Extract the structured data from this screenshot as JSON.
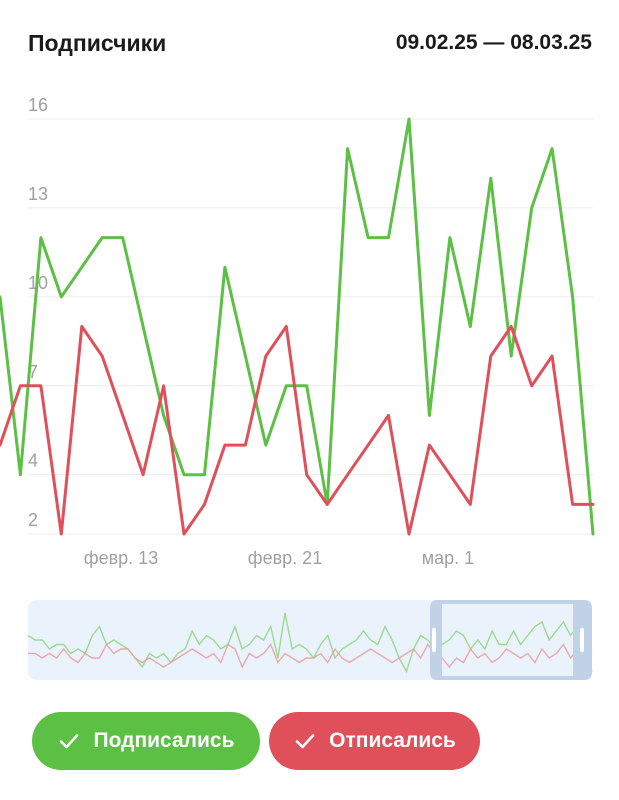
{
  "header": {
    "title": "Подписчики",
    "date_range": "09.02.25 — 08.03.25"
  },
  "chart_data": {
    "type": "line",
    "ylim": [
      2,
      16
    ],
    "y_ticks": [
      "16",
      "13",
      "10",
      "7",
      "4",
      "2"
    ],
    "x_ticks": [
      "февр. 13",
      "февр. 21",
      "мар. 1"
    ],
    "grid": true,
    "series": [
      {
        "name": "Подписались",
        "color": "#5cc045",
        "values": [
          10,
          4,
          12,
          10,
          11,
          12,
          12,
          9,
          6,
          4,
          4,
          11,
          8,
          5,
          7,
          7,
          3,
          15,
          12,
          12,
          16,
          6,
          12,
          9,
          14,
          8,
          13,
          15,
          10,
          2
        ]
      },
      {
        "name": "Отписались",
        "color": "#e0505a",
        "values": [
          5,
          7,
          7,
          2,
          9,
          8,
          6,
          4,
          7,
          2,
          3,
          5,
          5,
          8,
          9,
          4,
          3,
          4,
          5,
          6,
          2,
          5,
          4,
          3,
          8,
          9,
          7,
          8,
          3,
          3
        ]
      }
    ]
  },
  "navigator": {
    "green_values": [
      9,
      8,
      8,
      6,
      7,
      7,
      5,
      6,
      5,
      9,
      11,
      7,
      8,
      7,
      6,
      4,
      2,
      5,
      4,
      5,
      3,
      5,
      6,
      10,
      7,
      9,
      8,
      6,
      7,
      11,
      6,
      7,
      9,
      8,
      11,
      4,
      14,
      6,
      7,
      6,
      4,
      7,
      9,
      4,
      6,
      7,
      8,
      10,
      8,
      7,
      11,
      8,
      4,
      1,
      6,
      9,
      8,
      6,
      7,
      8,
      10,
      9,
      6,
      8,
      6,
      10,
      7,
      7,
      10,
      7,
      9,
      11,
      12,
      8,
      10,
      12,
      9,
      11,
      6,
      1
    ],
    "red_values": [
      5,
      5,
      4,
      5,
      4,
      6,
      4,
      3,
      5,
      4,
      4,
      7,
      5,
      6,
      6,
      4,
      3,
      4,
      3,
      2,
      3,
      4,
      5,
      6,
      5,
      4,
      5,
      3,
      7,
      6,
      2,
      5,
      4,
      5,
      7,
      3,
      5,
      4,
      3,
      4,
      4,
      5,
      3,
      6,
      4,
      3,
      4,
      5,
      6,
      5,
      4,
      3,
      4,
      5,
      6,
      4,
      7,
      5,
      4,
      2,
      4,
      3,
      6,
      4,
      5,
      3,
      4,
      6,
      5,
      4,
      5,
      3,
      6,
      4,
      5,
      7,
      4,
      6,
      4,
      5
    ],
    "selection_fraction": [
      0.72,
      1.0
    ]
  },
  "buttons": {
    "subscribed": "Подписались",
    "unsubscribed": "Отписались"
  }
}
